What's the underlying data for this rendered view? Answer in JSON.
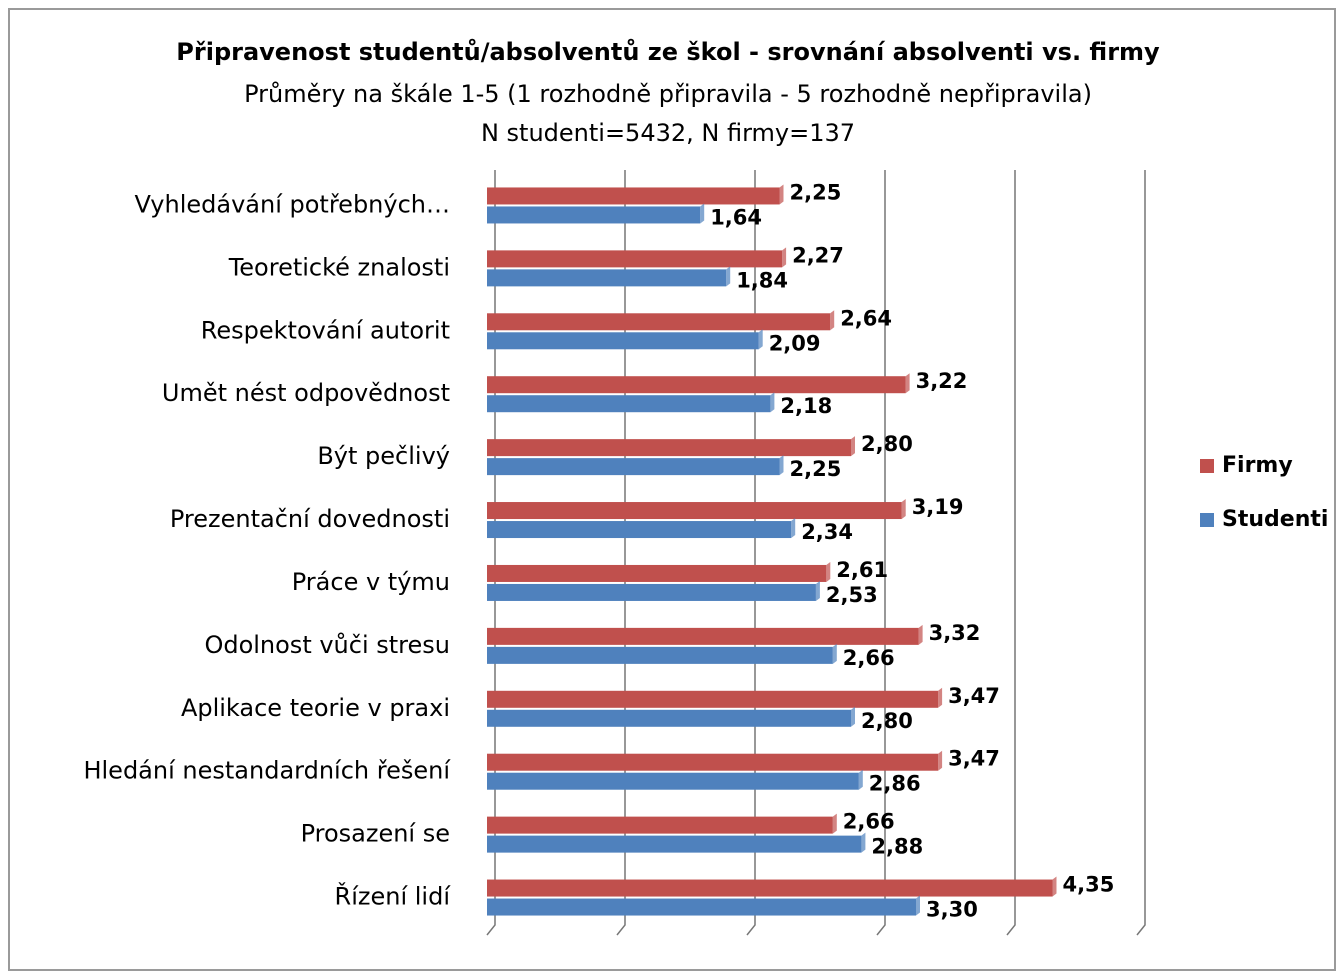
{
  "chart_data": {
    "type": "hbar",
    "title": "Připravenost studentů/absolventů ze škol - srovnání  absolventi vs. firmy",
    "subtitle": "Průměry na škále 1-5 (1 rozhodně připravila - 5 rozhodně nepřipravila)",
    "note": "N studenti=5432, N firmy=137",
    "categories": [
      "Vyhledávání potřebných…",
      "Teoretické znalosti",
      "Respektování autorit",
      "Umět nést odpovědnost",
      "Být pečlivý",
      "Prezentační dovednosti",
      "Práce v týmu",
      "Odolnost vůči stresu",
      "Aplikace teorie v praxi",
      "Hledání nestandardních řešení",
      "Prosazení se",
      "Řízení lidí"
    ],
    "series": [
      {
        "name": "Firmy",
        "color": "#c0504d",
        "values": [
          2.25,
          2.27,
          2.64,
          3.22,
          2.8,
          3.19,
          2.61,
          3.32,
          3.47,
          3.47,
          2.66,
          4.35
        ],
        "value_labels": [
          "2,25",
          "2,27",
          "2,64",
          "3,22",
          "2,80",
          "3,19",
          "2,61",
          "3,32",
          "3,47",
          "3,47",
          "2,66",
          "4,35"
        ]
      },
      {
        "name": "Studenti",
        "color": "#4f81bd",
        "values": [
          1.64,
          1.84,
          2.09,
          2.18,
          2.25,
          2.34,
          2.53,
          2.66,
          2.8,
          2.86,
          2.88,
          3.3
        ],
        "value_labels": [
          "1,64",
          "1,84",
          "2,09",
          "2,18",
          "2,25",
          "2,34",
          "2,53",
          "2,66",
          "2,80",
          "2,86",
          "2,88",
          "3,30"
        ]
      }
    ],
    "xlim": [
      0,
      5
    ],
    "xticks": [
      0,
      1,
      2,
      3,
      4,
      5
    ],
    "grid": true,
    "show_tick_labels": false,
    "legend": "right"
  }
}
